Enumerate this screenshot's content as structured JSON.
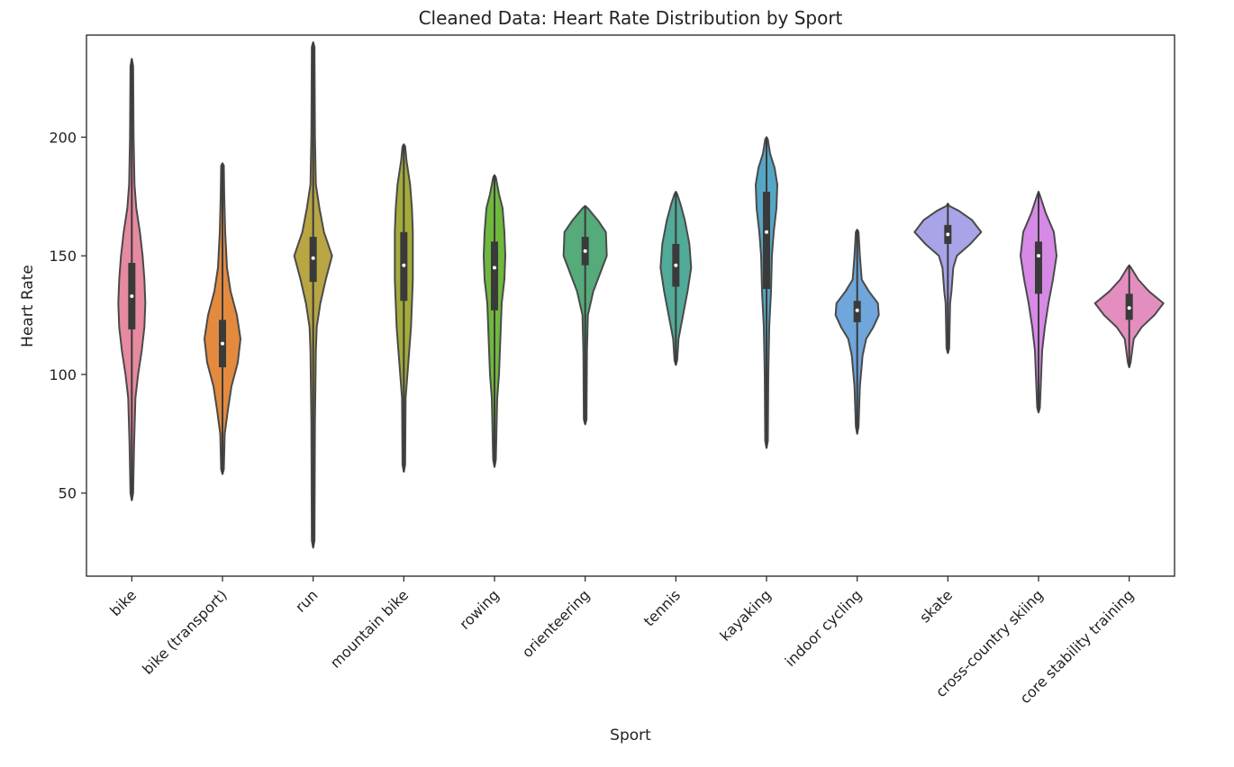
{
  "chart_data": {
    "type": "violin",
    "title": "Cleaned Data: Heart Rate Distribution by Sport",
    "xlabel": "Sport",
    "ylabel": "Heart Rate",
    "ylim": [
      15,
      243
    ],
    "yticks": [
      50,
      100,
      150,
      200
    ],
    "categories": [
      "bike",
      "bike (transport)",
      "run",
      "mountain bike",
      "rowing",
      "orienteering",
      "tennis",
      "kayaking",
      "indoor cycling",
      "skate",
      "cross-country skiing",
      "core stability training"
    ],
    "series": [
      {
        "category": "bike",
        "color": "#e68aa0",
        "min": 47,
        "max": 233,
        "q1": 119,
        "median": 133,
        "q3": 147,
        "violin": [
          [
            50,
            1.5
          ],
          [
            70,
            2.5
          ],
          [
            90,
            4
          ],
          [
            100,
            7
          ],
          [
            110,
            11
          ],
          [
            120,
            14
          ],
          [
            130,
            15
          ],
          [
            140,
            14
          ],
          [
            150,
            12
          ],
          [
            160,
            9
          ],
          [
            170,
            5
          ],
          [
            180,
            3
          ],
          [
            200,
            2
          ],
          [
            230,
            1.5
          ]
        ]
      },
      {
        "category": "bike (transport)",
        "color": "#e38a3f",
        "min": 58,
        "max": 189,
        "q1": 103,
        "median": 113,
        "q3": 123,
        "violin": [
          [
            60,
            1.5
          ],
          [
            75,
            2.5
          ],
          [
            85,
            6
          ],
          [
            95,
            10
          ],
          [
            105,
            17
          ],
          [
            115,
            20
          ],
          [
            125,
            16
          ],
          [
            135,
            9
          ],
          [
            145,
            5
          ],
          [
            160,
            3
          ],
          [
            175,
            2
          ],
          [
            188,
            1.5
          ]
        ]
      },
      {
        "category": "run",
        "color": "#b8a544",
        "min": 27,
        "max": 240,
        "q1": 139,
        "median": 149,
        "q3": 158,
        "violin": [
          [
            30,
            1.5
          ],
          [
            80,
            2
          ],
          [
            110,
            3
          ],
          [
            120,
            4
          ],
          [
            130,
            8
          ],
          [
            140,
            14
          ],
          [
            150,
            21
          ],
          [
            160,
            12
          ],
          [
            170,
            7
          ],
          [
            180,
            3
          ],
          [
            200,
            2
          ],
          [
            238,
            1.5
          ]
        ]
      },
      {
        "category": "mountain bike",
        "color": "#a3ab3a",
        "min": 59,
        "max": 197,
        "q1": 131,
        "median": 146,
        "q3": 160,
        "violin": [
          [
            62,
            1.5
          ],
          [
            90,
            2
          ],
          [
            100,
            4
          ],
          [
            110,
            6
          ],
          [
            120,
            8
          ],
          [
            130,
            9
          ],
          [
            140,
            10
          ],
          [
            150,
            10
          ],
          [
            160,
            10
          ],
          [
            170,
            9
          ],
          [
            180,
            7
          ],
          [
            190,
            3
          ],
          [
            196,
            1.5
          ]
        ]
      },
      {
        "category": "rowing",
        "color": "#6fb83e",
        "min": 61,
        "max": 184,
        "q1": 127,
        "median": 145,
        "q3": 156,
        "violin": [
          [
            64,
            1.5
          ],
          [
            90,
            3
          ],
          [
            100,
            5
          ],
          [
            110,
            6
          ],
          [
            120,
            7
          ],
          [
            130,
            8
          ],
          [
            140,
            11
          ],
          [
            150,
            12
          ],
          [
            160,
            11
          ],
          [
            170,
            9
          ],
          [
            176,
            5
          ],
          [
            183,
            1.5
          ]
        ]
      },
      {
        "category": "orienteering",
        "color": "#55ab7a",
        "min": 79,
        "max": 171,
        "q1": 146,
        "median": 152,
        "q3": 158,
        "violin": [
          [
            81,
            1.5
          ],
          [
            110,
            2
          ],
          [
            125,
            3
          ],
          [
            135,
            9
          ],
          [
            140,
            14
          ],
          [
            150,
            24
          ],
          [
            160,
            23
          ],
          [
            165,
            14
          ],
          [
            170,
            3
          ]
        ]
      },
      {
        "category": "tennis",
        "color": "#52aa98",
        "min": 104,
        "max": 177,
        "q1": 137,
        "median": 146,
        "q3": 155,
        "violin": [
          [
            106,
            1.5
          ],
          [
            115,
            3
          ],
          [
            125,
            8
          ],
          [
            135,
            13
          ],
          [
            145,
            17
          ],
          [
            155,
            15
          ],
          [
            165,
            10
          ],
          [
            172,
            5
          ],
          [
            176,
            1.5
          ]
        ]
      },
      {
        "category": "kayaking",
        "color": "#55a6c5",
        "min": 69,
        "max": 200,
        "q1": 136,
        "median": 160,
        "q3": 177,
        "violin": [
          [
            72,
            1.5
          ],
          [
            100,
            2
          ],
          [
            120,
            3
          ],
          [
            135,
            5
          ],
          [
            150,
            6
          ],
          [
            160,
            8
          ],
          [
            170,
            11
          ],
          [
            180,
            12
          ],
          [
            187,
            9
          ],
          [
            193,
            4
          ],
          [
            199,
            1.5
          ]
        ]
      },
      {
        "category": "indoor cycling",
        "color": "#6fa6db",
        "min": 75,
        "max": 161,
        "q1": 122,
        "median": 127,
        "q3": 131,
        "violin": [
          [
            78,
            1.5
          ],
          [
            95,
            3
          ],
          [
            108,
            6
          ],
          [
            115,
            10
          ],
          [
            120,
            18
          ],
          [
            125,
            24
          ],
          [
            130,
            23
          ],
          [
            135,
            13
          ],
          [
            140,
            5
          ],
          [
            150,
            3
          ],
          [
            160,
            1.5
          ]
        ]
      },
      {
        "category": "skate",
        "color": "#a9a3e8",
        "min": 109,
        "max": 172,
        "q1": 155,
        "median": 159,
        "q3": 163,
        "violin": [
          [
            111,
            1.5
          ],
          [
            130,
            2.5
          ],
          [
            135,
            4
          ],
          [
            145,
            6
          ],
          [
            150,
            10
          ],
          [
            155,
            25
          ],
          [
            160,
            37
          ],
          [
            165,
            27
          ],
          [
            169,
            12
          ],
          [
            171,
            1.5
          ]
        ]
      },
      {
        "category": "cross-country skiing",
        "color": "#d68ae6",
        "min": 84,
        "max": 177,
        "q1": 134,
        "median": 150,
        "q3": 156,
        "violin": [
          [
            86,
            1.5
          ],
          [
            110,
            4
          ],
          [
            120,
            7
          ],
          [
            130,
            11
          ],
          [
            140,
            16
          ],
          [
            150,
            20
          ],
          [
            160,
            17
          ],
          [
            168,
            8
          ],
          [
            175,
            2
          ]
        ]
      },
      {
        "category": "core stability training",
        "color": "#e48ec0",
        "min": 103,
        "max": 146,
        "q1": 123,
        "median": 128,
        "q3": 134,
        "violin": [
          [
            105,
            1.5
          ],
          [
            115,
            5
          ],
          [
            120,
            14
          ],
          [
            125,
            28
          ],
          [
            130,
            38
          ],
          [
            135,
            22
          ],
          [
            140,
            10
          ],
          [
            145,
            2
          ]
        ]
      }
    ]
  }
}
